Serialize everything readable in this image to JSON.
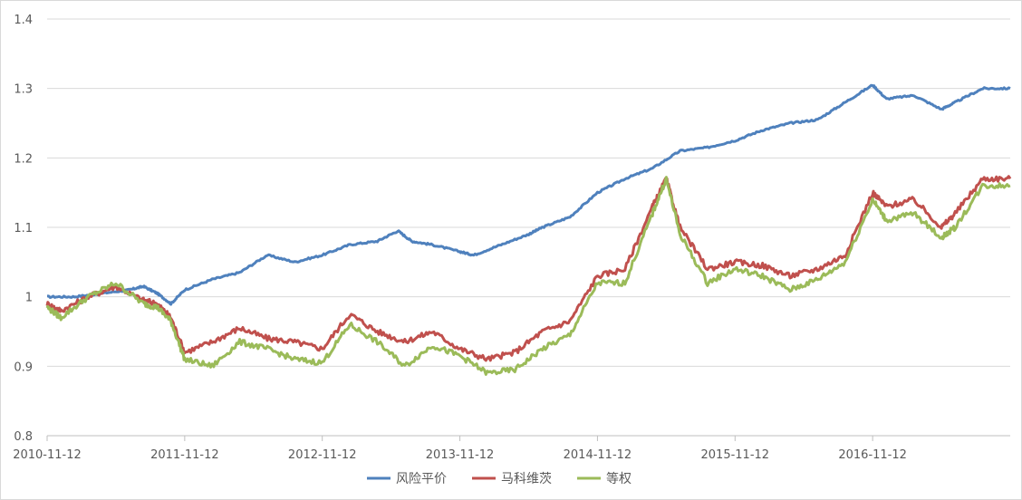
{
  "chart_data": {
    "type": "line",
    "title": "",
    "xlabel": "",
    "ylabel": "",
    "ylim": [
      0.8,
      1.4
    ],
    "yticks": [
      "0.8",
      "0.9",
      "1",
      "1.1",
      "1.2",
      "1.3",
      "1.4"
    ],
    "xticks": [
      "2010-11-12",
      "2011-11-12",
      "2012-11-12",
      "2013-11-12",
      "2014-11-12",
      "2015-11-12",
      "2016-11-12"
    ],
    "grid": "horizontal",
    "legend_position": "bottom",
    "x_unit": "years since 2010-11-12",
    "series": [
      {
        "name": "风险平价",
        "color": "#4f81bd",
        "points": [
          [
            0,
            1.0
          ],
          [
            0.2,
            1.0
          ],
          [
            0.4,
            1.005
          ],
          [
            0.6,
            1.01
          ],
          [
            0.7,
            1.015
          ],
          [
            0.8,
            1.005
          ],
          [
            0.9,
            0.99
          ],
          [
            1.0,
            1.01
          ],
          [
            1.2,
            1.025
          ],
          [
            1.4,
            1.035
          ],
          [
            1.6,
            1.06
          ],
          [
            1.8,
            1.05
          ],
          [
            2.0,
            1.06
          ],
          [
            2.2,
            1.075
          ],
          [
            2.4,
            1.08
          ],
          [
            2.55,
            1.095
          ],
          [
            2.65,
            1.08
          ],
          [
            2.8,
            1.075
          ],
          [
            3.0,
            1.065
          ],
          [
            3.1,
            1.06
          ],
          [
            3.3,
            1.075
          ],
          [
            3.5,
            1.09
          ],
          [
            3.6,
            1.1
          ],
          [
            3.8,
            1.115
          ],
          [
            4.0,
            1.15
          ],
          [
            4.2,
            1.17
          ],
          [
            4.4,
            1.185
          ],
          [
            4.6,
            1.21
          ],
          [
            4.8,
            1.215
          ],
          [
            5.0,
            1.225
          ],
          [
            5.2,
            1.24
          ],
          [
            5.4,
            1.25
          ],
          [
            5.6,
            1.255
          ],
          [
            5.8,
            1.28
          ],
          [
            6.0,
            1.305
          ],
          [
            6.1,
            1.285
          ],
          [
            6.3,
            1.29
          ],
          [
            6.5,
            1.27
          ],
          [
            6.6,
            1.28
          ],
          [
            6.8,
            1.3
          ],
          [
            7.0,
            1.3
          ]
        ]
      },
      {
        "name": "马科维茨",
        "color": "#c0504d",
        "points": [
          [
            0,
            0.99
          ],
          [
            0.1,
            0.98
          ],
          [
            0.3,
            1.0
          ],
          [
            0.5,
            1.015
          ],
          [
            0.7,
            0.995
          ],
          [
            0.8,
            0.99
          ],
          [
            0.9,
            0.97
          ],
          [
            1.0,
            0.92
          ],
          [
            1.2,
            0.935
          ],
          [
            1.4,
            0.955
          ],
          [
            1.6,
            0.94
          ],
          [
            1.8,
            0.935
          ],
          [
            2.0,
            0.925
          ],
          [
            2.2,
            0.975
          ],
          [
            2.4,
            0.95
          ],
          [
            2.6,
            0.935
          ],
          [
            2.8,
            0.95
          ],
          [
            3.0,
            0.925
          ],
          [
            3.2,
            0.91
          ],
          [
            3.4,
            0.92
          ],
          [
            3.6,
            0.95
          ],
          [
            3.8,
            0.965
          ],
          [
            4.0,
            1.03
          ],
          [
            4.2,
            1.04
          ],
          [
            4.4,
            1.13
          ],
          [
            4.5,
            1.17
          ],
          [
            4.6,
            1.1
          ],
          [
            4.8,
            1.04
          ],
          [
            5.0,
            1.05
          ],
          [
            5.2,
            1.045
          ],
          [
            5.4,
            1.03
          ],
          [
            5.6,
            1.04
          ],
          [
            5.8,
            1.06
          ],
          [
            6.0,
            1.15
          ],
          [
            6.1,
            1.13
          ],
          [
            6.3,
            1.14
          ],
          [
            6.5,
            1.1
          ],
          [
            6.6,
            1.12
          ],
          [
            6.8,
            1.17
          ],
          [
            7.0,
            1.17
          ]
        ]
      },
      {
        "name": "等权",
        "color": "#9bbb59",
        "points": [
          [
            0,
            0.985
          ],
          [
            0.1,
            0.97
          ],
          [
            0.3,
            1.0
          ],
          [
            0.5,
            1.02
          ],
          [
            0.7,
            0.99
          ],
          [
            0.8,
            0.985
          ],
          [
            0.9,
            0.965
          ],
          [
            1.0,
            0.91
          ],
          [
            1.2,
            0.9
          ],
          [
            1.4,
            0.935
          ],
          [
            1.6,
            0.925
          ],
          [
            1.8,
            0.91
          ],
          [
            2.0,
            0.905
          ],
          [
            2.2,
            0.96
          ],
          [
            2.4,
            0.935
          ],
          [
            2.6,
            0.9
          ],
          [
            2.8,
            0.93
          ],
          [
            3.0,
            0.915
          ],
          [
            3.2,
            0.89
          ],
          [
            3.4,
            0.895
          ],
          [
            3.6,
            0.925
          ],
          [
            3.8,
            0.945
          ],
          [
            4.0,
            1.02
          ],
          [
            4.2,
            1.02
          ],
          [
            4.4,
            1.12
          ],
          [
            4.5,
            1.17
          ],
          [
            4.6,
            1.09
          ],
          [
            4.8,
            1.02
          ],
          [
            5.0,
            1.04
          ],
          [
            5.2,
            1.03
          ],
          [
            5.4,
            1.01
          ],
          [
            5.6,
            1.025
          ],
          [
            5.8,
            1.05
          ],
          [
            6.0,
            1.14
          ],
          [
            6.1,
            1.11
          ],
          [
            6.3,
            1.12
          ],
          [
            6.5,
            1.085
          ],
          [
            6.6,
            1.1
          ],
          [
            6.8,
            1.16
          ],
          [
            7.0,
            1.16
          ]
        ]
      }
    ]
  }
}
